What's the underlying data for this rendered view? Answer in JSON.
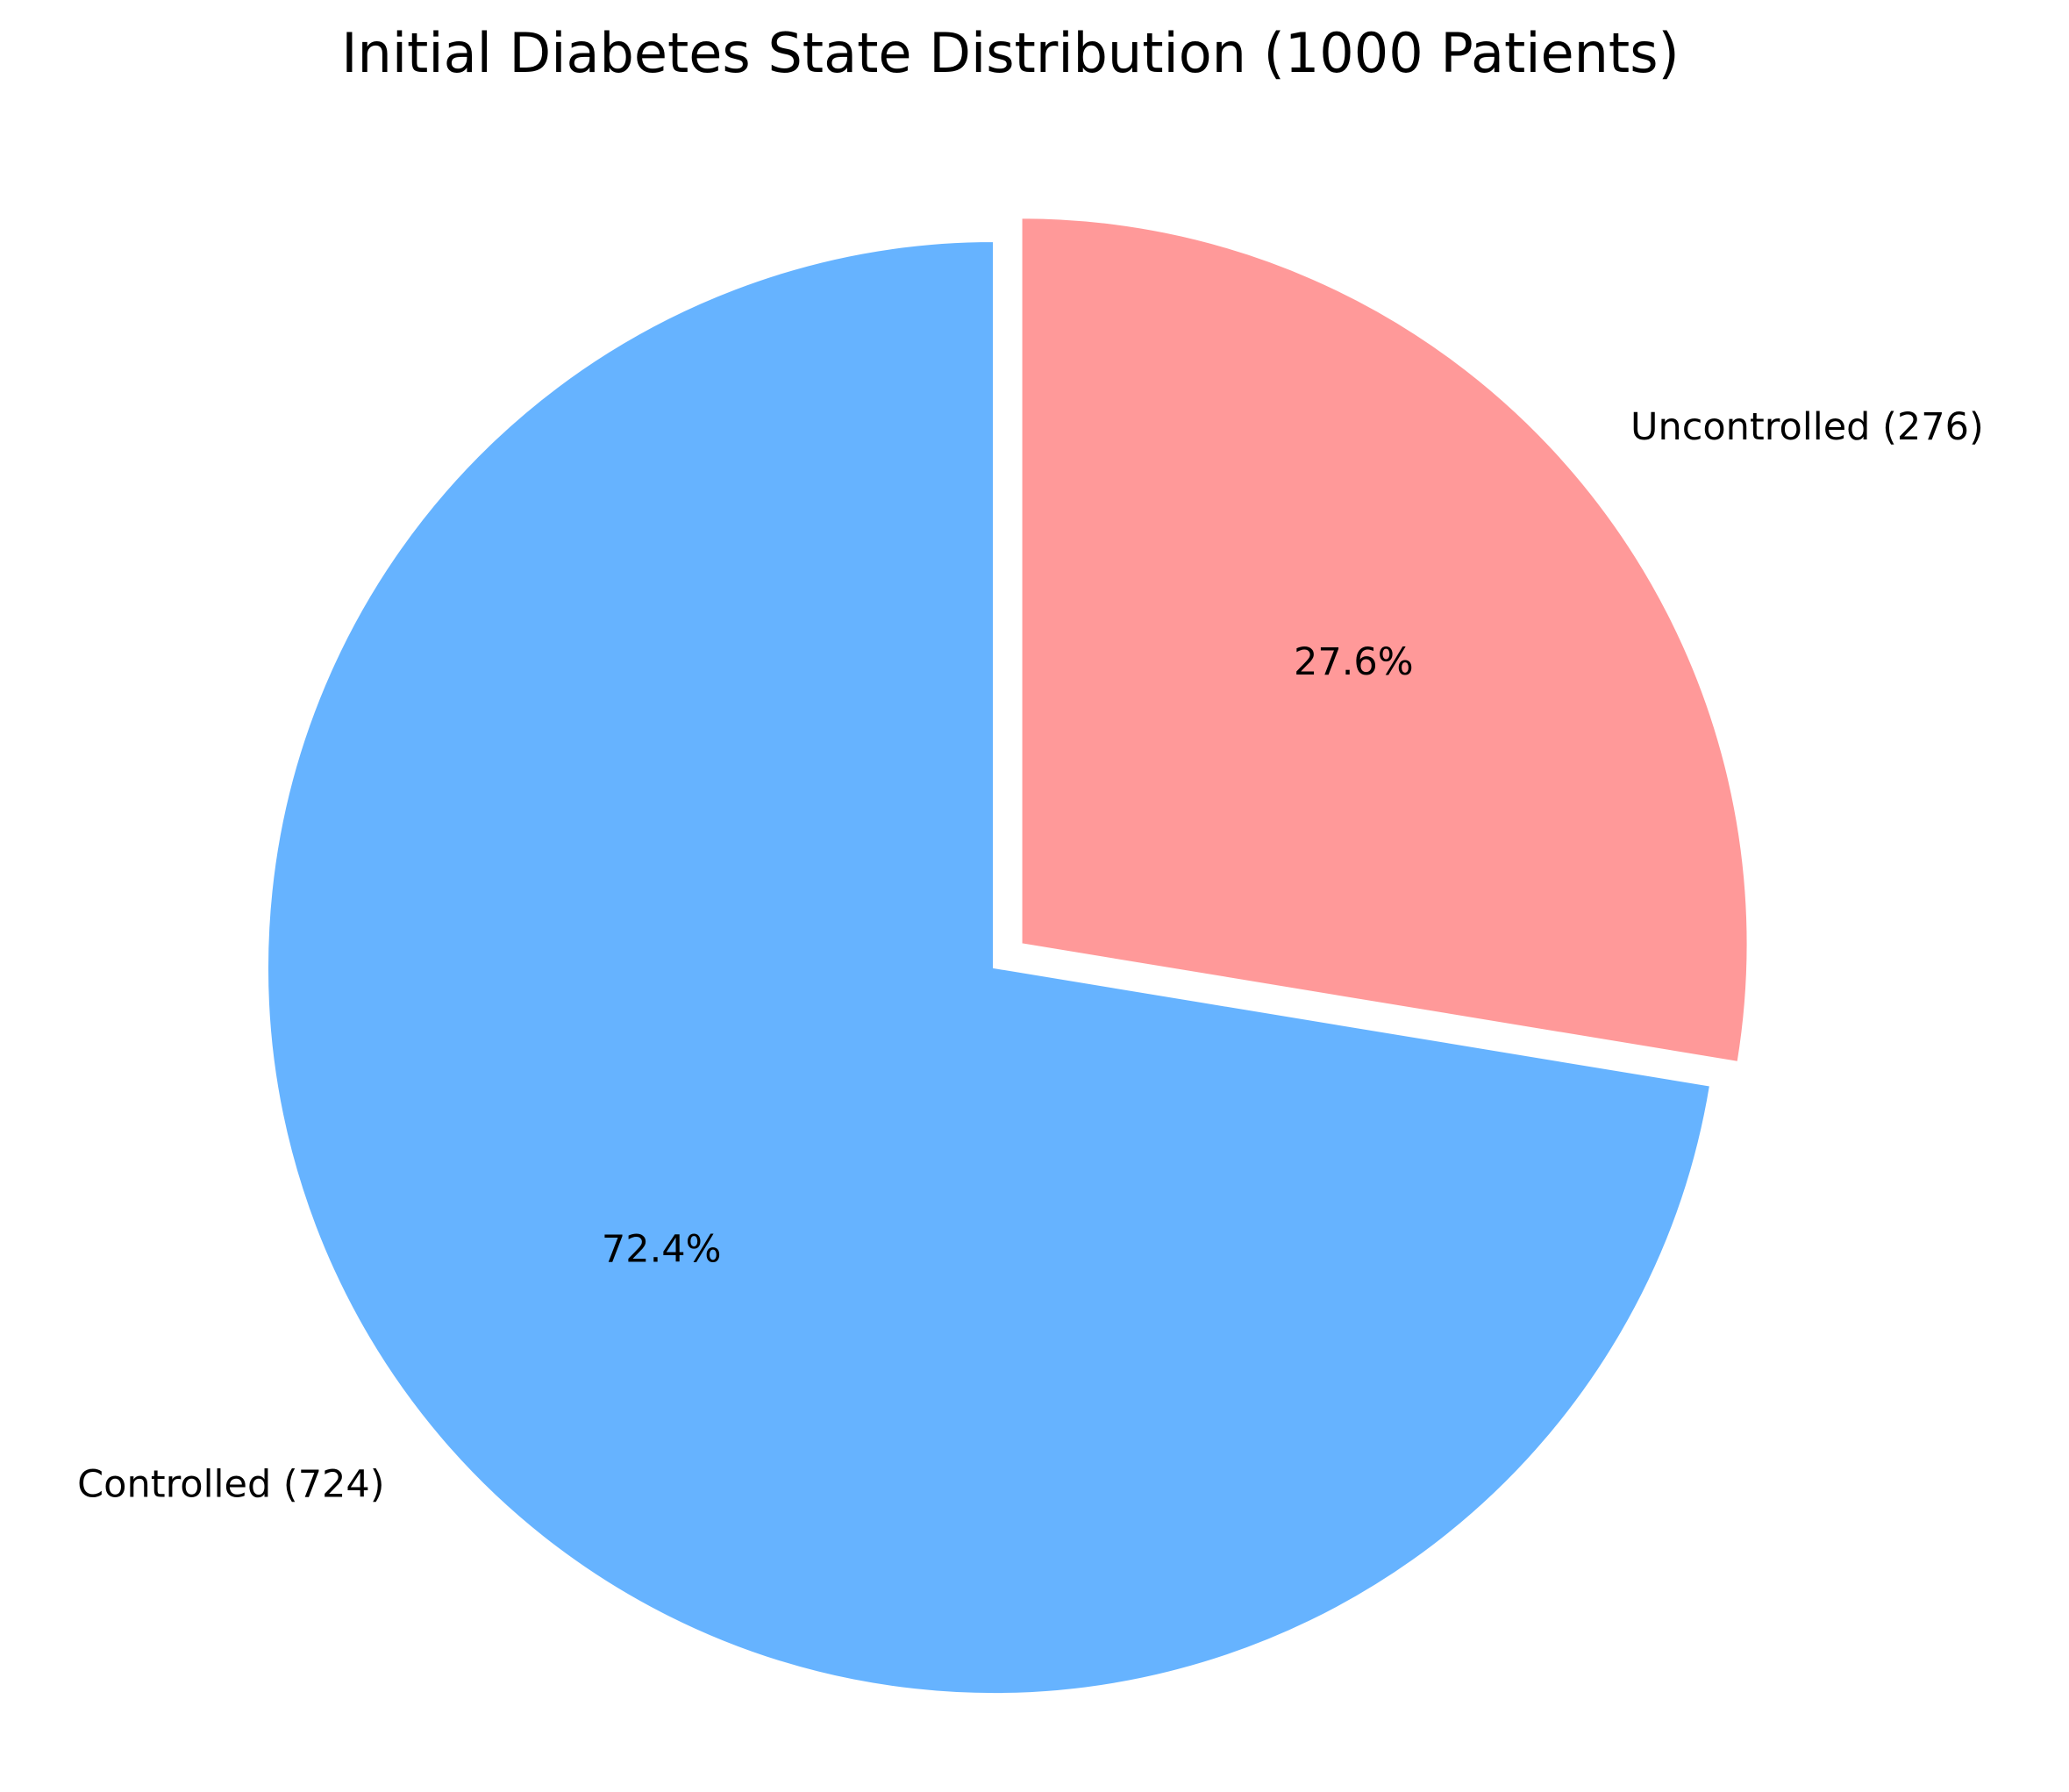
{
  "chart_data": {
    "type": "pie",
    "title": "Initial Diabetes State Distribution (1000 Patients)",
    "slices": [
      {
        "label": "Controlled (724)",
        "value": 724,
        "percent_label": "72.4%",
        "color": "#66b3ff",
        "exploded": false
      },
      {
        "label": "Uncontrolled (276)",
        "value": 276,
        "percent_label": "27.6%",
        "color": "#ff9999",
        "exploded": true
      }
    ],
    "start_angle": "top (90°)",
    "direction": "counterclockwise",
    "edge_color": "#ffffff"
  }
}
